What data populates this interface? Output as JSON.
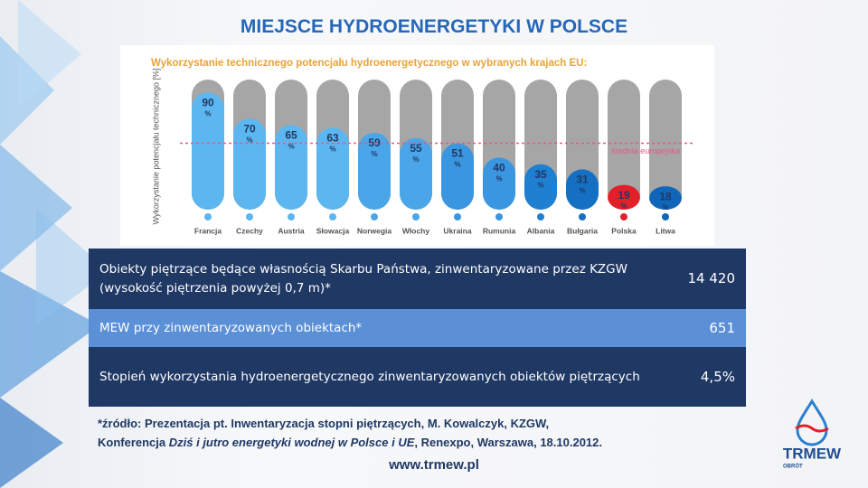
{
  "title": "MIEJSCE HYDROENERGETYKI W POLSCE",
  "chart_data": {
    "type": "bar",
    "title": "Wykorzystanie technicznego potencjału hydroenergetycznego w wybranych krajach EU:",
    "y_label": "Wykorzystanie potencjału technicznego [%]",
    "categories": [
      "Francja",
      "Czechy",
      "Austria",
      "Słowacja",
      "Norwegia",
      "Włochy",
      "Ukraina",
      "Rumunia",
      "Albania",
      "Bułgaria",
      "Polska",
      "Litwa"
    ],
    "values": [
      90,
      70,
      65,
      63,
      59,
      55,
      51,
      40,
      35,
      31,
      19,
      18
    ],
    "value_unit": "%",
    "colors": [
      "#5cb6ef",
      "#5cb6ef",
      "#5cb6ef",
      "#5cb6ef",
      "#4aa6e8",
      "#4aa6e8",
      "#3a96e0",
      "#3a96e0",
      "#1f7fd0",
      "#1570c4",
      "#e3202a",
      "#0f66b8"
    ],
    "ylim": [
      0,
      100
    ],
    "average": 51,
    "average_label": "średnia europejska",
    "average_color": "#e8578a"
  },
  "table": {
    "rows": [
      [
        "Obiekty piętrzące  będące własnością Skarbu Państwa, zinwentaryzowane przez KZGW (wysokość piętrzenia powyżej 0,7 m)*",
        "14 420"
      ],
      [
        "MEW przy zinwentaryzowanych obiektach*",
        "651"
      ],
      [
        "Stopień wykorzystania hydroenergetycznego zinwentaryzowanych obiektów piętrzących",
        "4,5%"
      ]
    ]
  },
  "source": {
    "line1": "*źródło: Prezentacja pt. Inwentaryzacja stopni piętrzących, M. Kowalczyk, KZGW,",
    "line2_start": "Konferencja ",
    "line2_italic": "Dziś i jutro energetyki wodnej w Polsce i UE",
    "line2_end": ", Renexpo, Warszawa, 18.10.2012."
  },
  "url": "www.trmew.pl",
  "logo": {
    "name": "TRMEW",
    "sub": "OBRÓT"
  }
}
